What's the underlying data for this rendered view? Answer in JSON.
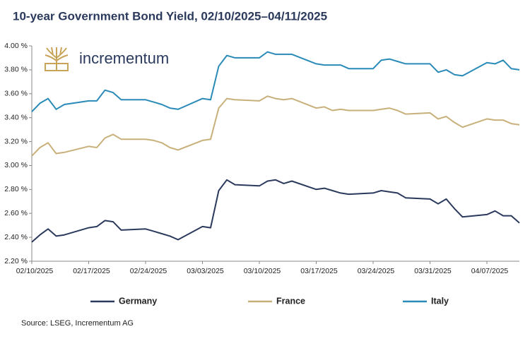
{
  "chart_data": {
    "type": "line",
    "title": "10-year Government Bond Yield, 02/10/2025–04/11/2025",
    "logo_text": "incrementum",
    "source": "Source: LSEG, Incrementum AG",
    "x": [
      "02/10/2025",
      "02/11/2025",
      "02/12/2025",
      "02/13/2025",
      "02/14/2025",
      "02/17/2025",
      "02/18/2025",
      "02/19/2025",
      "02/20/2025",
      "02/21/2025",
      "02/24/2025",
      "02/25/2025",
      "02/26/2025",
      "02/27/2025",
      "02/28/2025",
      "03/03/2025",
      "03/04/2025",
      "03/05/2025",
      "03/06/2025",
      "03/07/2025",
      "03/10/2025",
      "03/11/2025",
      "03/12/2025",
      "03/13/2025",
      "03/14/2025",
      "03/17/2025",
      "03/18/2025",
      "03/19/2025",
      "03/20/2025",
      "03/21/2025",
      "03/24/2025",
      "03/25/2025",
      "03/26/2025",
      "03/27/2025",
      "03/28/2025",
      "03/31/2025",
      "04/01/2025",
      "04/02/2025",
      "04/03/2025",
      "04/04/2025",
      "04/07/2025",
      "04/08/2025",
      "04/09/2025",
      "04/10/2025",
      "04/11/2025"
    ],
    "xlim": [
      "02/10/2025",
      "04/11/2025"
    ],
    "xticks": [
      "02/10/2025",
      "02/17/2025",
      "02/24/2025",
      "03/03/2025",
      "03/10/2025",
      "03/17/2025",
      "03/24/2025",
      "03/31/2025",
      "04/07/2025"
    ],
    "ylim": [
      2.2,
      4.0
    ],
    "yticks": [
      {
        "value": 2.2,
        "label": "2.20 %"
      },
      {
        "value": 2.4,
        "label": "2.40 %"
      },
      {
        "value": 2.6,
        "label": "2.60 %"
      },
      {
        "value": 2.8,
        "label": "2.80 %"
      },
      {
        "value": 3.0,
        "label": "3.00 %"
      },
      {
        "value": 3.2,
        "label": "3.20 %"
      },
      {
        "value": 3.4,
        "label": "3.40 %"
      },
      {
        "value": 3.6,
        "label": "3.60 %"
      },
      {
        "value": 3.8,
        "label": "3.80 %"
      },
      {
        "value": 4.0,
        "label": "4.00 %"
      }
    ],
    "grid": false,
    "legend": "bottom",
    "series": [
      {
        "name": "Germany",
        "color": "#2b3a5c",
        "values": [
          2.36,
          2.42,
          2.47,
          2.41,
          2.42,
          2.48,
          2.49,
          2.54,
          2.53,
          2.46,
          2.47,
          2.45,
          2.43,
          2.41,
          2.38,
          2.49,
          2.48,
          2.79,
          2.88,
          2.84,
          2.83,
          2.87,
          2.88,
          2.85,
          2.87,
          2.8,
          2.81,
          2.79,
          2.77,
          2.76,
          2.77,
          2.79,
          2.78,
          2.77,
          2.73,
          2.72,
          2.68,
          2.72,
          2.64,
          2.57,
          2.59,
          2.62,
          2.58,
          2.58,
          2.52
        ]
      },
      {
        "name": "France",
        "color": "#c8b07a",
        "values": [
          3.08,
          3.15,
          3.19,
          3.1,
          3.11,
          3.16,
          3.15,
          3.23,
          3.26,
          3.22,
          3.22,
          3.21,
          3.19,
          3.15,
          3.13,
          3.21,
          3.22,
          3.48,
          3.56,
          3.55,
          3.54,
          3.58,
          3.56,
          3.55,
          3.56,
          3.48,
          3.49,
          3.46,
          3.47,
          3.46,
          3.46,
          3.47,
          3.48,
          3.46,
          3.43,
          3.44,
          3.39,
          3.41,
          3.36,
          3.32,
          3.39,
          3.38,
          3.38,
          3.35,
          3.34
        ]
      },
      {
        "name": "Italy",
        "color": "#2a8ab8",
        "values": [
          3.45,
          3.52,
          3.56,
          3.47,
          3.51,
          3.54,
          3.54,
          3.63,
          3.61,
          3.55,
          3.55,
          3.53,
          3.51,
          3.48,
          3.47,
          3.56,
          3.55,
          3.83,
          3.92,
          3.9,
          3.9,
          3.95,
          3.93,
          3.93,
          3.93,
          3.85,
          3.84,
          3.84,
          3.84,
          3.81,
          3.81,
          3.88,
          3.89,
          3.87,
          3.85,
          3.85,
          3.78,
          3.8,
          3.76,
          3.75,
          3.86,
          3.85,
          3.88,
          3.81,
          3.8
        ]
      }
    ]
  }
}
